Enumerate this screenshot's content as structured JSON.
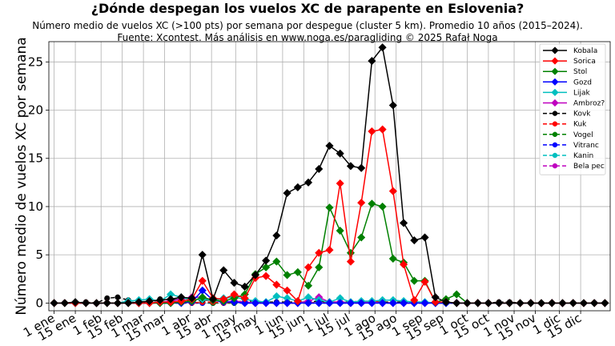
{
  "chart_data": {
    "type": "line",
    "title": "¿Dónde despegan los vuelos XC de parapente en Eslovenia?",
    "subtitle_1": "Número medio de vuelos XC (>100 pts) por semana por despegue (cluster 5 km). Promedio 10 años (2015–2024).",
    "subtitle_2": "Fuente: Xcontest. Más análisis en www.noga.es/paragliding © 2025 Rafał Noga",
    "ylabel": "Número medio de vuelos XC por semana",
    "xlabel": "",
    "ylim": [
      -0.8,
      27.1
    ],
    "yticks": [
      0,
      5,
      10,
      15,
      20,
      25
    ],
    "xlim": [
      -0.5,
      52.5
    ],
    "grid": true,
    "legend_position": "top-right",
    "x_tick_labels": [
      "1 ene",
      "15 ene",
      "1 feb",
      "15 feb",
      "1 mar",
      "15 mar",
      "1 abr",
      "15 abr",
      "1 may",
      "15 may",
      "1 jun",
      "15 jun",
      "1 jul",
      "15 jul",
      "1 ago",
      "15 ago",
      "1 sep",
      "15 sep",
      "1 oct",
      "15 oct",
      "1 nov",
      "15 nov",
      "1 dic",
      "15 dic"
    ],
    "x_tick_weeks": [
      0,
      2,
      4.43,
      6.43,
      8.43,
      10.43,
      12.86,
      14.86,
      17.14,
      19.14,
      21.57,
      23.57,
      25.86,
      27.86,
      30.29,
      32.29,
      34.71,
      36.71,
      39.0,
      41.0,
      43.43,
      45.43,
      47.71,
      49.71
    ],
    "weeks": [
      0,
      1,
      2,
      3,
      4,
      5,
      6,
      7,
      8,
      9,
      10,
      11,
      12,
      13,
      14,
      15,
      16,
      17,
      18,
      19,
      20,
      21,
      22,
      23,
      24,
      25,
      26,
      27,
      28,
      29,
      30,
      31,
      32,
      33,
      34,
      35,
      36,
      37,
      38,
      39,
      40,
      41,
      42,
      43,
      44,
      45,
      46,
      47,
      48,
      49,
      50,
      51,
      52
    ],
    "series": [
      {
        "name": "Kobala",
        "color": "#000000",
        "marker": "diamond",
        "dash": false,
        "values": [
          0,
          0,
          0.1,
          0,
          0,
          0,
          0,
          0,
          0.1,
          0.2,
          0.3,
          0.4,
          0.6,
          0.5,
          5.0,
          0.4,
          3.4,
          2.1,
          1.7,
          2.9,
          4.4,
          7.0,
          11.4,
          12.0,
          12.5,
          13.9,
          16.3,
          15.5,
          14.2,
          14.0,
          25.1,
          26.5,
          20.5,
          8.3,
          6.5,
          6.8,
          0.6,
          0.1,
          0,
          0,
          0,
          0,
          0,
          0,
          0,
          0,
          0,
          0,
          0,
          0,
          0,
          0,
          0
        ]
      },
      {
        "name": "Sorica",
        "color": "#ff0000",
        "marker": "diamond",
        "dash": false,
        "values": [
          0,
          0,
          0,
          0,
          0,
          0,
          0,
          0,
          0,
          0,
          0.1,
          0.1,
          0.2,
          0.4,
          2.3,
          0.5,
          0.4,
          0.9,
          0.5,
          2.6,
          2.8,
          1.9,
          1.3,
          0.2,
          3.7,
          5.2,
          5.5,
          12.4,
          4.3,
          10.4,
          17.8,
          18.0,
          11.6,
          4.0,
          0.3,
          2.2,
          0.1,
          0.1,
          0,
          0,
          0,
          0,
          0,
          0,
          0,
          0,
          0,
          0,
          0,
          0,
          0,
          0,
          0
        ]
      },
      {
        "name": "Stol",
        "color": "#008000",
        "marker": "diamond",
        "dash": false,
        "values": [
          0,
          0,
          0,
          0,
          0,
          0,
          0,
          0,
          0,
          0,
          0,
          0,
          0.1,
          0.2,
          0.6,
          0.3,
          0.2,
          0.5,
          0.9,
          3.0,
          3.7,
          4.3,
          2.9,
          3.2,
          1.8,
          3.7,
          9.9,
          7.5,
          5.2,
          6.8,
          10.3,
          10.0,
          4.6,
          4.2,
          2.3,
          2.3,
          0.1,
          0.4,
          0.9,
          0,
          0,
          0,
          0,
          0,
          0,
          0,
          0,
          0,
          0,
          0,
          0,
          0,
          0
        ]
      },
      {
        "name": "Gozd",
        "color": "#0000ff",
        "marker": "diamond",
        "dash": false,
        "values": [
          0,
          0,
          0,
          0,
          0,
          0,
          0,
          0,
          0,
          0,
          0,
          0,
          0,
          0.1,
          1.3,
          0.3,
          0.1,
          0.1,
          0,
          0,
          0,
          0,
          0,
          0,
          0,
          0,
          0,
          0,
          0,
          0,
          0,
          0,
          0,
          0,
          0,
          0,
          0,
          0,
          0,
          0,
          0,
          0,
          0,
          0,
          0,
          0,
          0,
          0,
          0,
          0,
          0,
          0,
          0
        ]
      },
      {
        "name": "Lijak",
        "color": "#00bfbf",
        "marker": "diamond",
        "dash": false,
        "values": [
          0,
          0,
          0,
          0,
          0,
          0,
          0,
          0.2,
          0.3,
          0.4,
          0.2,
          0.9,
          0.6,
          0.3,
          0.4,
          0.3,
          0.5,
          0.6,
          0.4,
          0.2,
          0.1,
          0.7,
          0.5,
          0.2,
          0.6,
          0.3,
          0.1,
          0.5,
          0.1,
          0.2,
          0.2,
          0.3,
          0.3,
          0.2,
          0.1,
          0.1,
          0,
          0,
          0,
          0,
          0,
          0,
          0,
          0,
          0,
          0,
          0,
          0,
          0,
          0,
          0,
          0,
          0
        ]
      },
      {
        "name": "Ambroz?",
        "color": "#bf00bf",
        "marker": "diamond",
        "dash": false,
        "values": [
          0,
          0,
          0,
          0,
          0,
          0,
          0,
          0,
          0,
          0,
          0.1,
          0.2,
          0.4,
          0.6,
          0.6,
          0.3,
          0.1,
          0.2,
          0.1,
          0,
          0,
          0,
          0,
          0,
          0.2,
          0.6,
          0.1,
          0.1,
          0,
          0.1,
          0.1,
          0,
          0,
          0,
          0,
          0,
          0,
          0,
          0,
          0,
          0,
          0,
          0,
          0,
          0,
          0,
          0,
          0,
          0,
          0,
          0,
          0,
          0
        ]
      },
      {
        "name": "Kovk",
        "color": "#000000",
        "marker": "circle",
        "dash": true,
        "values": [
          0,
          0,
          0,
          0.1,
          0,
          0.5,
          0.6,
          0.3,
          0.1,
          0,
          0.4,
          0.3,
          0.4,
          0.2,
          0.3,
          0.3,
          0.2,
          0.1,
          0.2,
          0.2,
          0.1,
          0.1,
          0.1,
          0.1,
          0.1,
          0.2,
          0.1,
          0.1,
          0.1,
          0.2,
          0.1,
          0.1,
          0.1,
          0.1,
          0.1,
          0.1,
          0,
          0,
          0,
          0,
          0,
          0,
          0.1,
          0.1,
          0,
          0,
          0,
          0,
          0,
          0,
          0,
          0,
          0
        ]
      },
      {
        "name": "Kuk",
        "color": "#ff0000",
        "marker": "circle",
        "dash": true,
        "values": [
          0,
          0,
          0,
          0,
          0,
          0,
          0,
          0,
          0,
          0,
          0,
          0,
          0,
          0,
          0.1,
          0.1,
          0,
          0.1,
          0,
          0.1,
          0.1,
          0,
          0,
          0,
          0,
          0.1,
          0,
          0.1,
          0,
          0.1,
          0.2,
          0.1,
          0,
          0,
          0,
          0,
          0,
          0,
          0,
          0,
          0,
          0,
          0,
          0,
          0,
          0,
          0,
          0,
          0,
          0,
          0,
          0,
          0
        ]
      },
      {
        "name": "Vogel",
        "color": "#008000",
        "marker": "circle",
        "dash": true,
        "values": [
          0,
          0,
          0,
          0,
          0,
          0,
          0,
          0,
          0,
          0,
          0,
          0,
          0,
          0,
          0.1,
          0,
          0,
          0,
          0.1,
          0,
          0,
          0,
          0,
          0,
          0,
          0,
          0,
          0,
          0,
          0,
          0.1,
          0,
          0,
          0,
          0,
          0,
          0,
          0,
          0,
          0,
          0,
          0,
          0,
          0,
          0,
          0,
          0,
          0,
          0,
          0,
          0,
          0,
          0
        ]
      },
      {
        "name": "Vitranc",
        "color": "#0000ff",
        "marker": "circle",
        "dash": true,
        "values": [
          0,
          0,
          0,
          0,
          0,
          0,
          0,
          0,
          0,
          0,
          0,
          0,
          0,
          0,
          0,
          0,
          0,
          0,
          0,
          0,
          0,
          0,
          0,
          0,
          0,
          0,
          0,
          0,
          0,
          0,
          0,
          0,
          0,
          0,
          0,
          0,
          0,
          0,
          0,
          0,
          0,
          0,
          0,
          0,
          0,
          0,
          0,
          0,
          0,
          0,
          0,
          0,
          0
        ]
      },
      {
        "name": "Kanin",
        "color": "#00bfbf",
        "marker": "circle",
        "dash": true,
        "values": [
          0,
          0,
          0,
          0,
          0,
          0,
          0,
          0,
          0,
          0,
          0,
          0,
          0,
          0,
          0,
          0,
          0,
          0,
          0,
          0,
          0.1,
          0,
          0,
          0,
          0,
          0,
          0,
          0.1,
          0.1,
          0,
          0.1,
          0,
          0,
          0,
          0,
          0,
          0,
          0,
          0,
          0,
          0,
          0,
          0,
          0,
          0,
          0,
          0,
          0,
          0,
          0,
          0,
          0,
          0
        ]
      },
      {
        "name": "Bela pec",
        "color": "#bf00bf",
        "marker": "circle",
        "dash": true,
        "values": [
          0,
          0,
          0,
          0,
          0,
          0,
          0,
          0,
          0,
          0,
          0,
          0,
          0.1,
          0,
          0,
          0,
          0.1,
          0,
          0,
          0,
          0,
          0,
          0,
          0,
          0,
          0,
          0,
          0,
          0,
          0,
          0,
          0,
          0,
          0,
          0,
          0,
          0,
          0,
          0,
          0,
          0,
          0,
          0,
          0,
          0,
          0,
          0,
          0,
          0,
          0,
          0,
          0,
          0
        ]
      }
    ]
  }
}
